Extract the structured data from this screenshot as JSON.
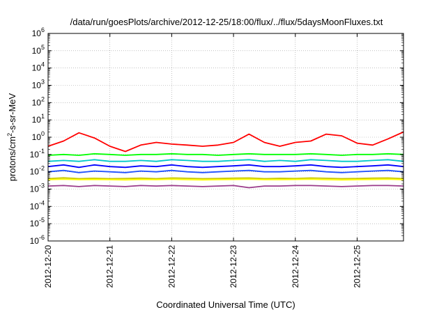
{
  "chart_data": {
    "type": "line",
    "title": "/data/run/goesPlots/archive/2012-12-25/18:00/flux/../flux/5daysMoonFluxes.txt",
    "xlabel": "Coordinated Universal Time (UTC)",
    "ylabel": "protons/cm²-s-sr-MeV",
    "ylabel_parts": {
      "pre": "protons/cm",
      "sup": "2",
      "post": "-s-sr-MeV"
    },
    "y_scale": "log",
    "ylim": [
      1e-06,
      1000000.0
    ],
    "xlim": [
      "2012-12-20",
      "2012-12-25 18:00"
    ],
    "y_ticks": [
      {
        "base": "10",
        "exp": "-6",
        "value": 1e-06
      },
      {
        "base": "10",
        "exp": "-5",
        "value": 1e-05
      },
      {
        "base": "10",
        "exp": "-4",
        "value": 0.0001
      },
      {
        "base": "10",
        "exp": "-3",
        "value": 0.001
      },
      {
        "base": "10",
        "exp": "-2",
        "value": 0.01
      },
      {
        "base": "10",
        "exp": "-1",
        "value": 0.1
      },
      {
        "base": "10",
        "exp": "0",
        "value": 1
      },
      {
        "base": "10",
        "exp": "1",
        "value": 10
      },
      {
        "base": "10",
        "exp": "2",
        "value": 100
      },
      {
        "base": "10",
        "exp": "3",
        "value": 1000
      },
      {
        "base": "10",
        "exp": "4",
        "value": 10000
      },
      {
        "base": "10",
        "exp": "5",
        "value": 100000
      },
      {
        "base": "10",
        "exp": "6",
        "value": 1000000
      }
    ],
    "x_ticks": [
      "2012-12-20",
      "2012-12-21",
      "2012-12-22",
      "2012-12-23",
      "2012-12-24",
      "2012-12-25"
    ],
    "grid": true,
    "x_hours": [
      0,
      6,
      12,
      18,
      24,
      30,
      36,
      42,
      48,
      54,
      60,
      66,
      72,
      78,
      84,
      90,
      96,
      102,
      108,
      114,
      120,
      126,
      132,
      138
    ],
    "series": [
      {
        "color": "#ff0000",
        "values": [
          0.3,
          0.6,
          1.8,
          0.9,
          0.3,
          0.15,
          0.35,
          0.5,
          0.4,
          0.35,
          0.3,
          0.35,
          0.5,
          1.5,
          0.5,
          0.3,
          0.5,
          0.6,
          1.5,
          1.2,
          0.45,
          0.35,
          0.8,
          2.0
        ]
      },
      {
        "color": "#00ff00",
        "values": [
          0.09,
          0.1,
          0.09,
          0.11,
          0.1,
          0.09,
          0.1,
          0.1,
          0.11,
          0.1,
          0.1,
          0.09,
          0.1,
          0.11,
          0.1,
          0.1,
          0.1,
          0.11,
          0.1,
          0.09,
          0.1,
          0.1,
          0.11,
          0.1
        ]
      },
      {
        "color": "#00c8c8",
        "values": [
          0.04,
          0.045,
          0.04,
          0.05,
          0.04,
          0.04,
          0.045,
          0.04,
          0.05,
          0.045,
          0.04,
          0.04,
          0.045,
          0.05,
          0.04,
          0.045,
          0.04,
          0.05,
          0.045,
          0.04,
          0.04,
          0.045,
          0.05,
          0.04
        ]
      },
      {
        "color": "#0000ff",
        "values": [
          0.02,
          0.025,
          0.018,
          0.025,
          0.02,
          0.018,
          0.022,
          0.02,
          0.025,
          0.02,
          0.018,
          0.02,
          0.022,
          0.025,
          0.02,
          0.02,
          0.022,
          0.025,
          0.02,
          0.018,
          0.02,
          0.022,
          0.025,
          0.02
        ]
      },
      {
        "color": "#1e50ff",
        "values": [
          0.01,
          0.012,
          0.009,
          0.011,
          0.01,
          0.009,
          0.011,
          0.01,
          0.012,
          0.01,
          0.009,
          0.01,
          0.011,
          0.012,
          0.01,
          0.01,
          0.011,
          0.012,
          0.01,
          0.009,
          0.01,
          0.011,
          0.012,
          0.01
        ]
      },
      {
        "color": "#c8c800",
        "values": [
          0.004,
          0.0045,
          0.004,
          0.0042,
          0.004,
          0.0041,
          0.0043,
          0.004,
          0.0044,
          0.0042,
          0.004,
          0.0041,
          0.0043,
          0.0044,
          0.004,
          0.0042,
          0.0041,
          0.0044,
          0.0042,
          0.004,
          0.0041,
          0.0043,
          0.0044,
          0.004
        ]
      },
      {
        "color": "#ffff00",
        "values": [
          0.0035,
          0.0037,
          0.0035,
          0.0036,
          0.0035,
          0.0034,
          0.0036,
          0.0035,
          0.0037,
          0.0035,
          0.0034,
          0.0035,
          0.0036,
          0.0037,
          0.0035,
          0.0035,
          0.0036,
          0.0037,
          0.0035,
          0.0034,
          0.0035,
          0.0036,
          0.0037,
          0.0035
        ]
      },
      {
        "color": "#9a3a8a",
        "values": [
          0.0015,
          0.0016,
          0.0014,
          0.0016,
          0.0015,
          0.0014,
          0.0016,
          0.0015,
          0.0016,
          0.0015,
          0.0014,
          0.0015,
          0.0016,
          0.0012,
          0.0015,
          0.0015,
          0.0016,
          0.0016,
          0.0015,
          0.0014,
          0.0015,
          0.0016,
          0.0016,
          0.0015
        ]
      }
    ]
  }
}
